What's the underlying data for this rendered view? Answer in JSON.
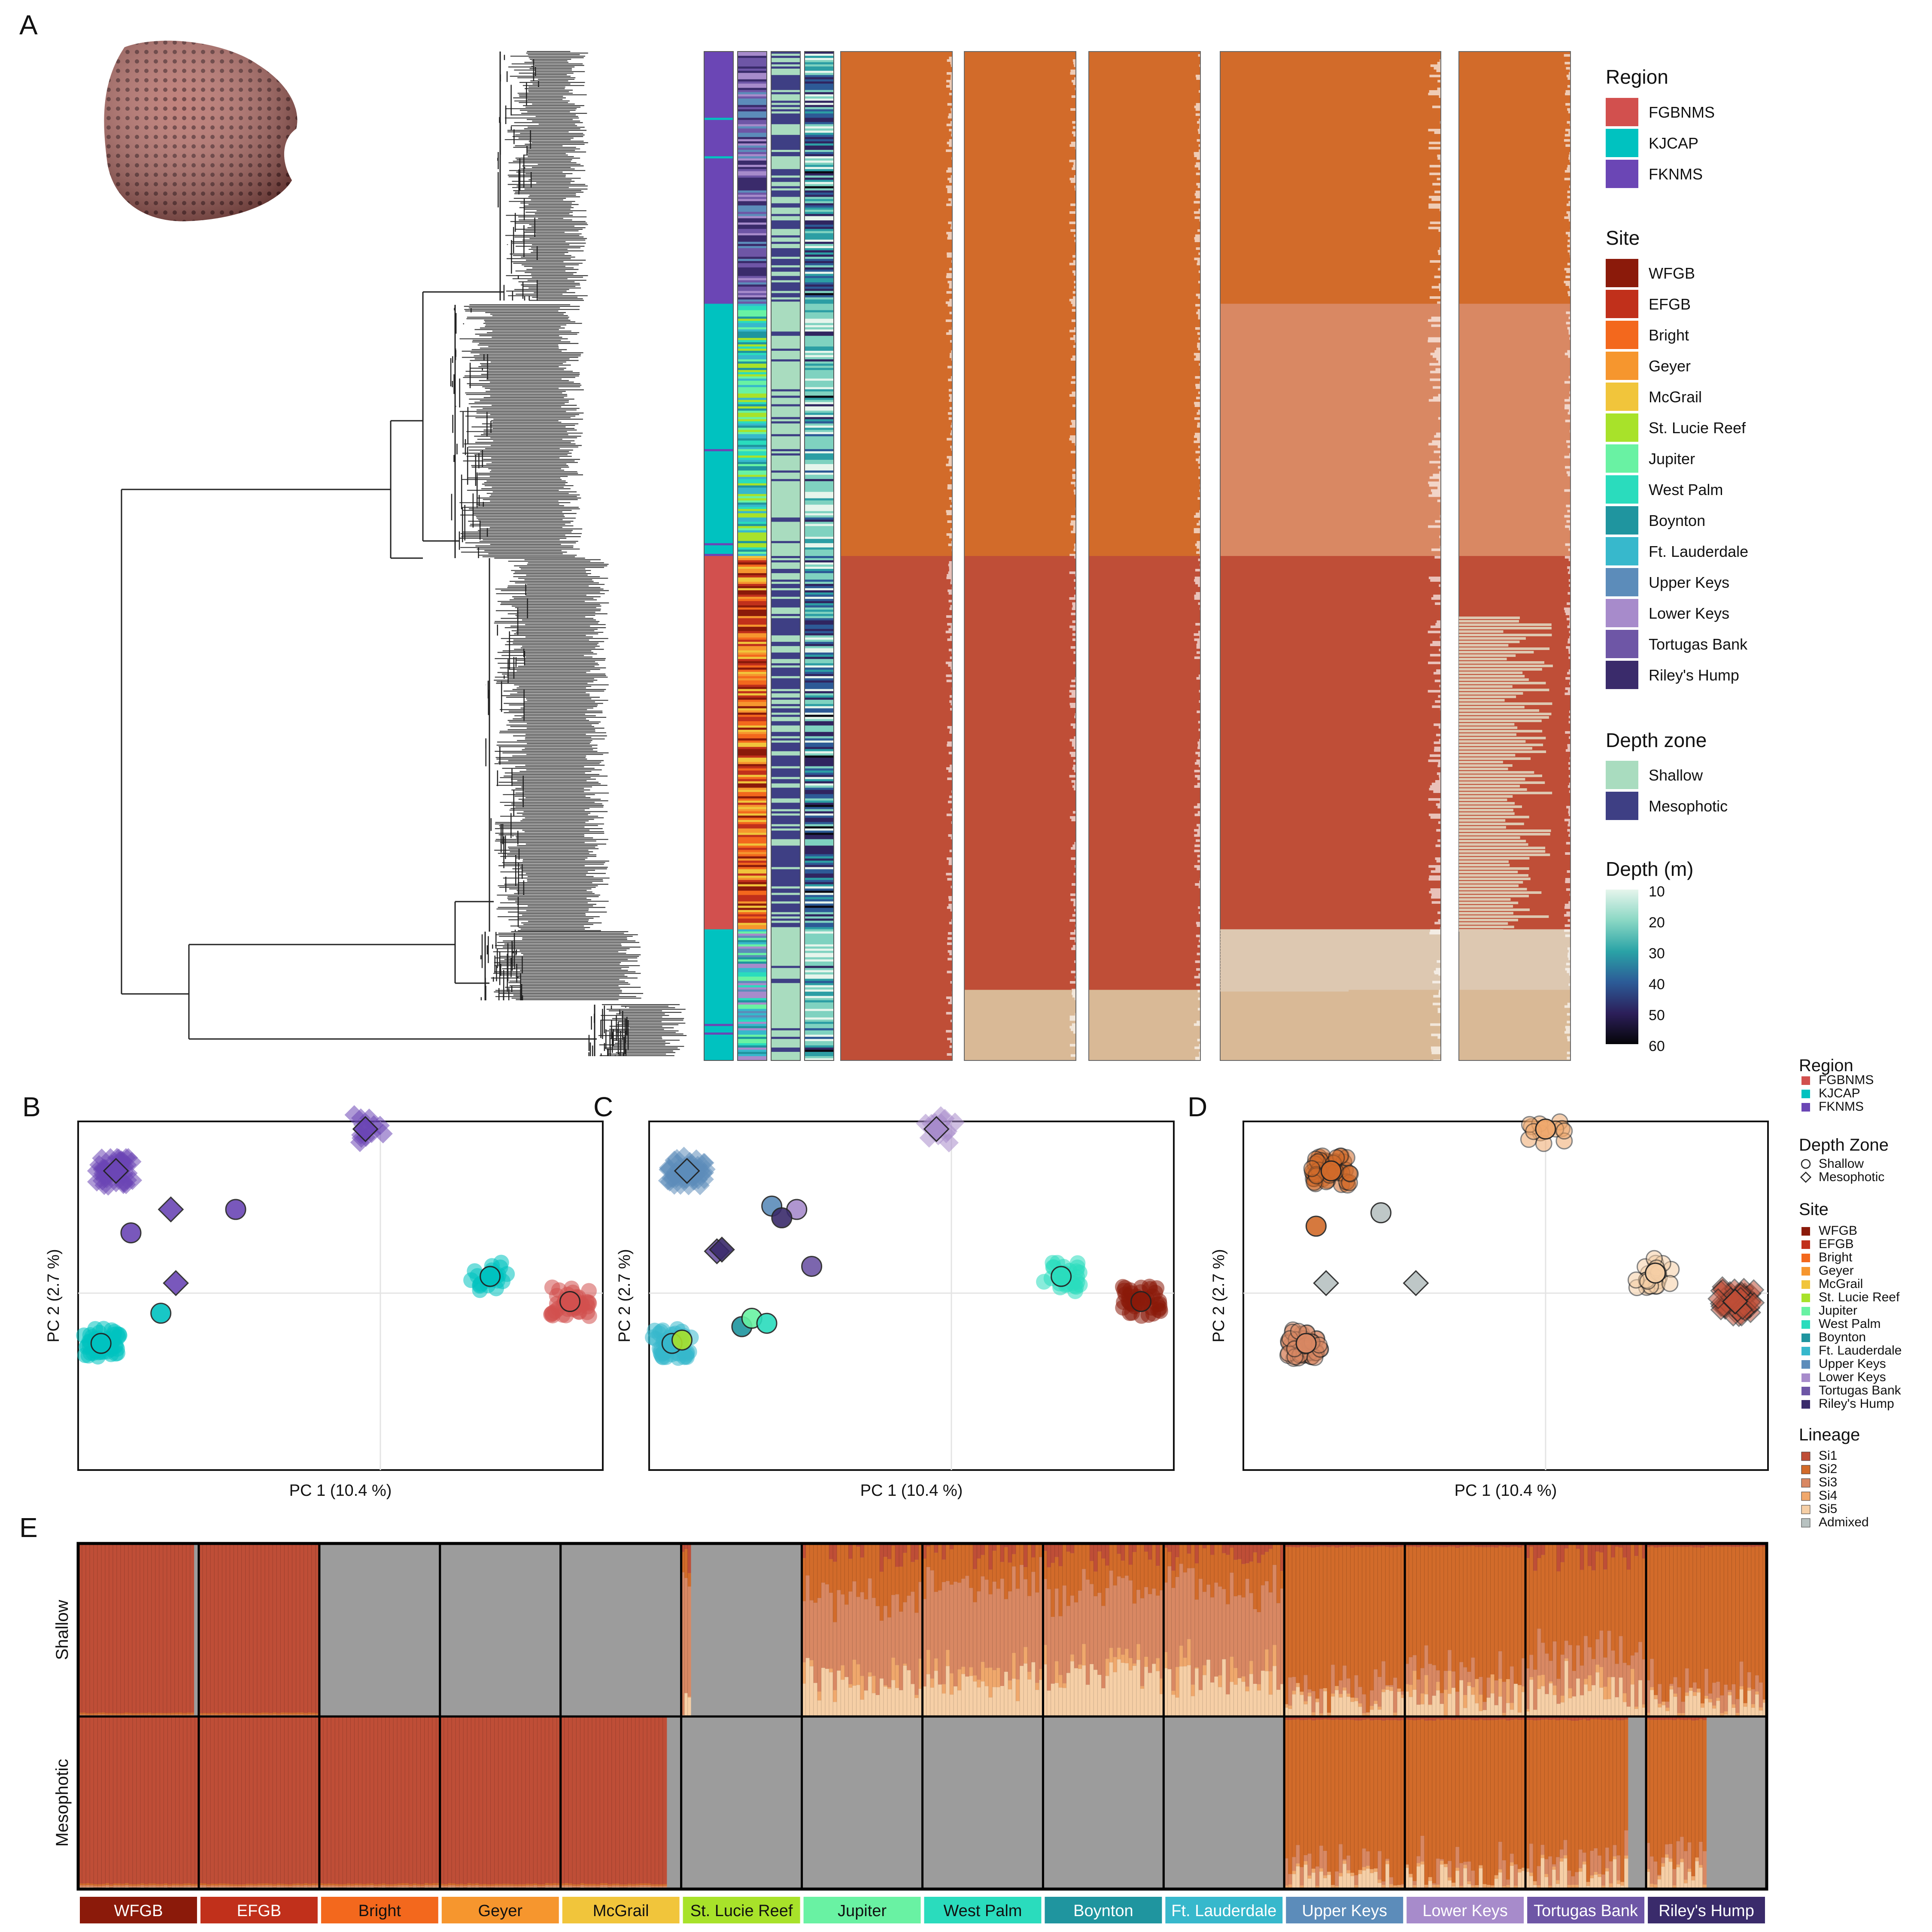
{
  "panel_labels": [
    "A",
    "B",
    "C",
    "D",
    "E"
  ],
  "colors": {
    "region": {
      "FGBNMS": "#d2504e",
      "KJCAP": "#00c2c0",
      "FKNMS": "#6b46b5"
    },
    "site": {
      "WFGB": "#8b1a0a",
      "EFGB": "#c1301b",
      "Bright": "#f3681d",
      "Geyer": "#f6962e",
      "McGrail": "#f1c53b",
      "St. Lucie Reef": "#a8e22a",
      "Jupiter": "#69f2a3",
      "West Palm": "#2adcbd",
      "Boynton": "#1f959f",
      "Ft. Lauderdale": "#37b8cc",
      "Upper Keys": "#5c8cba",
      "Lower Keys": "#a78bcb",
      "Tortugas Bank": "#6e56a6",
      "Riley's Hump": "#3a2b6b"
    },
    "depth_zone": {
      "Shallow": "#a9dcbf",
      "Mesophotic": "#3e3f84"
    },
    "lineage": {
      "Si1": "#bf4e37",
      "Si2": "#d26b2a",
      "Si3": "#d98863",
      "Si4": "#f0a86c",
      "Si5": "#f6cfa6",
      "Admixed": "#b8c2c1"
    },
    "tan": "#d9b996",
    "cream": "#ddc8b1",
    "grey": "#9c9c9c"
  },
  "panel_a": {
    "legend": {
      "region_title": "Region",
      "regions": [
        "FGBNMS",
        "KJCAP",
        "FKNMS"
      ],
      "site_title": "Site",
      "sites": [
        "WFGB",
        "EFGB",
        "Bright",
        "Geyer",
        "McGrail",
        "St. Lucie Reef",
        "Jupiter",
        "West Palm",
        "Boynton",
        "Ft. Lauderdale",
        "Upper Keys",
        "Lower Keys",
        "Tortugas Bank",
        "Riley's Hump"
      ],
      "depth_zone_title": "Depth zone",
      "depth_zones": [
        "Shallow",
        "Mesophotic"
      ],
      "depth_title": "Depth (m)",
      "depth_ticks": [
        "10",
        "20",
        "30",
        "40",
        "50",
        "60"
      ]
    }
  },
  "pca_axes": {
    "xlabel": "PC 1 (10.4 %)",
    "ylabel": "PC 2 (2.7 %)"
  },
  "side_legend": {
    "region_title": "Region",
    "regions": [
      "FGBNMS",
      "KJCAP",
      "FKNMS"
    ],
    "depth_title": "Depth Zone",
    "depth_zones": [
      "Shallow",
      "Mesophotic"
    ],
    "site_title": "Site",
    "sites": [
      "WFGB",
      "EFGB",
      "Bright",
      "Geyer",
      "McGrail",
      "St. Lucie Reef",
      "Jupiter",
      "West Palm",
      "Boynton",
      "Ft. Lauderdale",
      "Upper Keys",
      "Lower Keys",
      "Tortugas Bank",
      "Riley's Hump"
    ],
    "lineage_title": "Lineage",
    "lineages": [
      "Si1",
      "Si2",
      "Si3",
      "Si4",
      "Si5",
      "Admixed"
    ]
  },
  "chart_data": [
    {
      "type": "scatter",
      "panel": "B",
      "color_by": "region",
      "xlabel": "PC 1 (10.4 %)",
      "ylabel": "PC 2 (2.7 %)",
      "clusters": [
        {
          "x": 0.05,
          "y": 0.73,
          "group": "FKNMS",
          "shape": "diamond",
          "n": 45
        },
        {
          "x": 0.02,
          "y": -0.3,
          "group": "KJCAP",
          "shape": "circle",
          "n": 45
        },
        {
          "x": 0.55,
          "y": 0.98,
          "group": "FKNMS",
          "shape": "diamond",
          "n": 12
        },
        {
          "x": 0.8,
          "y": 0.1,
          "group": "KJCAP",
          "shape": "circle",
          "n": 25
        },
        {
          "x": 0.96,
          "y": -0.05,
          "group": "FGBNMS",
          "shape": "circle",
          "n": 40
        }
      ],
      "points": [
        {
          "x": 0.29,
          "y": 0.5,
          "group": "FKNMS",
          "shape": "circle"
        },
        {
          "x": 0.14,
          "y": -0.12,
          "group": "KJCAP",
          "shape": "circle"
        },
        {
          "x": 0.16,
          "y": 0.5,
          "group": "FKNMS",
          "shape": "diamond"
        },
        {
          "x": 0.17,
          "y": 0.06,
          "group": "FKNMS",
          "shape": "diamond"
        },
        {
          "x": 0.08,
          "y": 0.36,
          "group": "FKNMS",
          "shape": "circle"
        }
      ]
    },
    {
      "type": "scatter",
      "panel": "C",
      "color_by": "site",
      "xlabel": "PC 1 (10.4 %)",
      "ylabel": "PC 2 (2.7 %)",
      "clusters": [
        {
          "x": 0.05,
          "y": 0.73,
          "group": "Upper Keys",
          "shape": "diamond",
          "n": 45
        },
        {
          "x": 0.02,
          "y": -0.3,
          "group": "Ft. Lauderdale",
          "shape": "circle",
          "n": 45
        },
        {
          "x": 0.55,
          "y": 0.98,
          "group": "Lower Keys",
          "shape": "diamond",
          "n": 12
        },
        {
          "x": 0.8,
          "y": 0.1,
          "group": "West Palm",
          "shape": "circle",
          "n": 25
        },
        {
          "x": 0.96,
          "y": -0.05,
          "group": "WFGB",
          "shape": "circle",
          "n": 40
        }
      ],
      "points": [
        {
          "x": 0.27,
          "y": 0.5,
          "group": "Lower Keys",
          "shape": "circle"
        },
        {
          "x": 0.22,
          "y": 0.52,
          "group": "Upper Keys",
          "shape": "circle"
        },
        {
          "x": 0.24,
          "y": 0.45,
          "group": "Riley's Hump",
          "shape": "circle"
        },
        {
          "x": 0.3,
          "y": 0.16,
          "group": "Tortugas Bank",
          "shape": "circle"
        },
        {
          "x": 0.11,
          "y": 0.25,
          "group": "Tortugas Bank",
          "shape": "diamond"
        },
        {
          "x": 0.12,
          "y": 0.26,
          "group": "Riley's Hump",
          "shape": "diamond"
        },
        {
          "x": 0.16,
          "y": -0.2,
          "group": "Boynton",
          "shape": "circle"
        },
        {
          "x": 0.18,
          "y": -0.15,
          "group": "Jupiter",
          "shape": "circle"
        },
        {
          "x": 0.21,
          "y": -0.18,
          "group": "West Palm",
          "shape": "circle"
        },
        {
          "x": 0.04,
          "y": -0.28,
          "group": "St. Lucie Reef",
          "shape": "circle"
        }
      ]
    },
    {
      "type": "scatter",
      "panel": "D",
      "color_by": "lineage",
      "xlabel": "PC 1 (10.4 %)",
      "ylabel": "PC 2 (2.7 %)",
      "clusters": [
        {
          "x": 0.15,
          "y": 0.73,
          "group": "Si2",
          "shape": "circle",
          "n": 45
        },
        {
          "x": 0.1,
          "y": -0.3,
          "group": "Si3",
          "shape": "circle",
          "n": 45
        },
        {
          "x": 0.58,
          "y": 0.98,
          "group": "Si4",
          "shape": "circle",
          "n": 12
        },
        {
          "x": 0.8,
          "y": 0.12,
          "group": "Si5",
          "shape": "circle",
          "n": 25
        },
        {
          "x": 0.96,
          "y": -0.05,
          "group": "Si1",
          "shape": "diamond",
          "n": 40
        }
      ],
      "points": [
        {
          "x": 0.12,
          "y": 0.4,
          "group": "Si2",
          "shape": "circle"
        },
        {
          "x": 0.25,
          "y": 0.48,
          "group": "Admixed",
          "shape": "circle"
        },
        {
          "x": 0.14,
          "y": 0.06,
          "group": "Admixed",
          "shape": "diamond"
        },
        {
          "x": 0.32,
          "y": 0.06,
          "group": "Admixed",
          "shape": "diamond"
        }
      ]
    },
    {
      "type": "bar",
      "panel": "E",
      "stacked": true,
      "row_labels": [
        "Shallow",
        "Mesophotic"
      ],
      "categories": [
        "WFGB",
        "EFGB",
        "Bright",
        "Geyer",
        "McGrail",
        "St. Lucie Reef",
        "Jupiter",
        "West Palm",
        "Boynton",
        "Ft. Lauderdale",
        "Upper Keys",
        "Lower Keys",
        "Tortugas Bank",
        "Riley's Hump"
      ],
      "shallow": [
        {
          "fill": 0.96,
          "mix": [
            0.98,
            0.01,
            0.01,
            0,
            0
          ]
        },
        {
          "fill": 1.0,
          "mix": [
            0.98,
            0.01,
            0.01,
            0,
            0
          ]
        },
        {
          "fill": 0,
          "mix": []
        },
        {
          "fill": 0,
          "mix": []
        },
        {
          "fill": 0,
          "mix": []
        },
        {
          "fill": 0.08,
          "mix": [
            0.1,
            0.1,
            0.7,
            0.05,
            0.05
          ]
        },
        {
          "fill": 1.0,
          "mix": [
            0.05,
            0.25,
            0.45,
            0.05,
            0.2
          ]
        },
        {
          "fill": 1.0,
          "mix": [
            0.03,
            0.2,
            0.5,
            0.05,
            0.22
          ]
        },
        {
          "fill": 1.0,
          "mix": [
            0.04,
            0.22,
            0.45,
            0.05,
            0.24
          ]
        },
        {
          "fill": 1.0,
          "mix": [
            0.03,
            0.2,
            0.5,
            0.05,
            0.22
          ]
        },
        {
          "fill": 1.0,
          "mix": [
            0.02,
            0.8,
            0.08,
            0.02,
            0.08
          ]
        },
        {
          "fill": 1.0,
          "mix": [
            0.02,
            0.75,
            0.1,
            0.03,
            0.1
          ]
        },
        {
          "fill": 1.0,
          "mix": [
            0.05,
            0.55,
            0.2,
            0.05,
            0.15
          ]
        },
        {
          "fill": 1.0,
          "mix": [
            0.02,
            0.82,
            0.08,
            0.02,
            0.06
          ]
        }
      ],
      "mesophotic": [
        {
          "fill": 1.0,
          "mix": [
            0.97,
            0.01,
            0.01,
            0,
            0.01
          ]
        },
        {
          "fill": 1.0,
          "mix": [
            0.97,
            0.01,
            0.01,
            0,
            0.01
          ]
        },
        {
          "fill": 1.0,
          "mix": [
            0.97,
            0.01,
            0.01,
            0,
            0.01
          ]
        },
        {
          "fill": 1.0,
          "mix": [
            0.97,
            0.01,
            0.01,
            0,
            0.01
          ]
        },
        {
          "fill": 0.88,
          "mix": [
            0.97,
            0.01,
            0.01,
            0,
            0.01
          ]
        },
        {
          "fill": 0,
          "mix": []
        },
        {
          "fill": 0,
          "mix": []
        },
        {
          "fill": 0,
          "mix": []
        },
        {
          "fill": 0,
          "mix": []
        },
        {
          "fill": 0,
          "mix": []
        },
        {
          "fill": 1.0,
          "mix": [
            0.02,
            0.85,
            0.06,
            0.02,
            0.05
          ]
        },
        {
          "fill": 1.0,
          "mix": [
            0.02,
            0.85,
            0.06,
            0.02,
            0.05
          ]
        },
        {
          "fill": 0.85,
          "mix": [
            0.02,
            0.8,
            0.08,
            0.02,
            0.08
          ]
        },
        {
          "fill": 0.5,
          "mix": [
            0.02,
            0.8,
            0.08,
            0.02,
            0.08
          ]
        }
      ]
    },
    {
      "type": "heatmap",
      "panel": "A",
      "description_tracks": [
        "Region",
        "Site",
        "Depth zone",
        "Depth (m)"
      ],
      "row_groups": [
        {
          "rows": 0.25,
          "region": "FKNMS"
        },
        {
          "rows": 0.25,
          "region": "KJCAP"
        },
        {
          "rows": 0.37,
          "region": "FGBNMS"
        },
        {
          "rows": 0.13,
          "region": "KJCAP"
        }
      ],
      "admixture_columns": [
        {
          "k": 2,
          "segments": [
            [
              "Si2",
              0.5
            ],
            [
              "Si1",
              0.5
            ]
          ]
        },
        {
          "k": 3,
          "segments": [
            [
              "Si2",
              0.5
            ],
            [
              "Si1",
              0.43
            ],
            [
              "tan",
              0.07
            ]
          ]
        },
        {
          "k": 4,
          "segments": [
            [
              "Si2",
              0.5
            ],
            [
              "Si1",
              0.43
            ],
            [
              "tan",
              0.07
            ]
          ]
        },
        {
          "k": 5,
          "segments": [
            [
              "Si2",
              0.25
            ],
            [
              "Si3",
              0.25
            ],
            [
              "Si1",
              0.37
            ],
            [
              "cream",
              0.06
            ],
            [
              "tan",
              0.07
            ]
          ]
        },
        {
          "k": 6,
          "segments": [
            [
              "Si2",
              0.25
            ],
            [
              "Si3",
              0.25
            ],
            [
              "Si1",
              0.37
            ],
            [
              "cream",
              0.06
            ],
            [
              "tan",
              0.07
            ]
          ]
        }
      ]
    }
  ]
}
